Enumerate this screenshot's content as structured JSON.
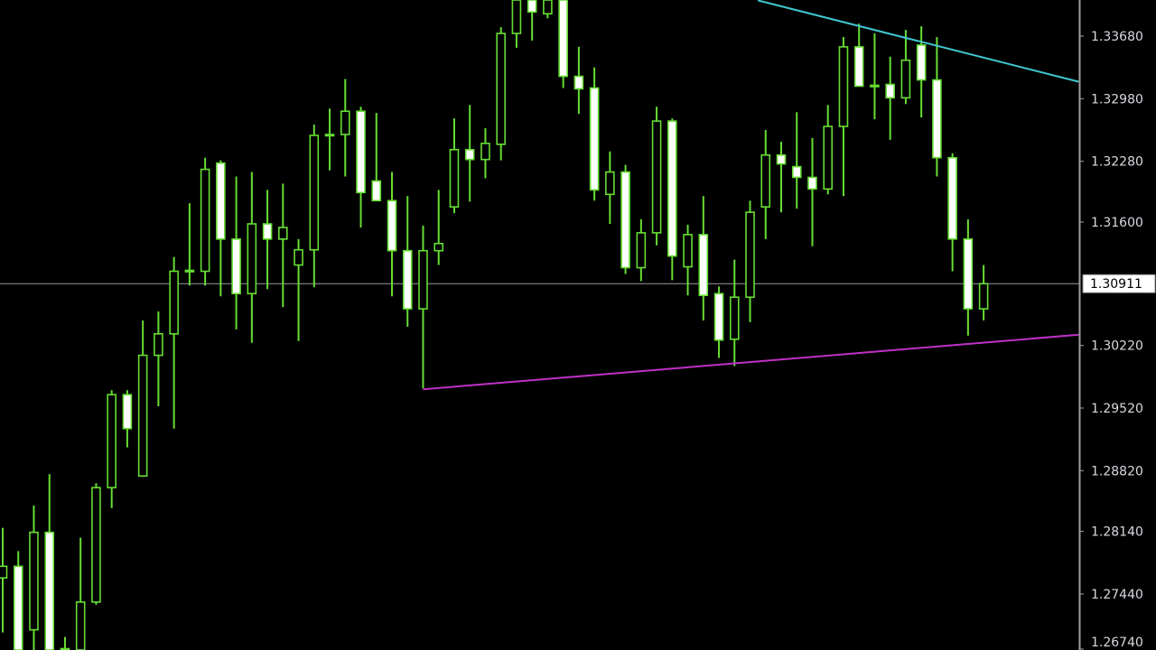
{
  "chart_data": {
    "type": "candlestick",
    "colors": {
      "background": "#000000",
      "candle_outline": "#66dd33",
      "bear_body_fill": "#ffffff",
      "bull_body_fill": "#000000",
      "axis": "#a0a0a0",
      "current_price_line": "#9a9aa8",
      "resistance_line": "#40c8d0",
      "support_line": "#c030c8"
    },
    "y_axis": {
      "position": "right",
      "range": [
        1.26814,
        1.34084
      ],
      "ticks": [
        "1.33680",
        "1.32980",
        "1.32280",
        "1.31600",
        "1.30220",
        "1.29520",
        "1.28820",
        "1.28140",
        "1.27440",
        "1.26740"
      ]
    },
    "current_price": "1.30911",
    "grid": false,
    "candles_ohlc": [
      [
        1.2762,
        1.2818,
        1.2701,
        1.2775
      ],
      [
        1.2775,
        1.2792,
        1.2671,
        1.2681
      ],
      [
        1.2704,
        1.2843,
        1.2676,
        1.2813
      ],
      [
        1.2813,
        1.2878,
        1.2661,
        1.2671
      ],
      [
        1.265,
        1.2696,
        1.264,
        1.267
      ],
      [
        1.2676,
        1.2807,
        1.266,
        1.2735
      ],
      [
        1.2735,
        1.2868,
        1.2732,
        1.2863
      ],
      [
        1.2863,
        1.2972,
        1.284,
        1.2967
      ],
      [
        1.2967,
        1.2972,
        1.2908,
        1.2929
      ],
      [
        1.2876,
        1.305,
        1.2875,
        1.3011
      ],
      [
        1.3011,
        1.306,
        1.2954,
        1.3035
      ],
      [
        1.3035,
        1.3121,
        1.2929,
        1.3105
      ],
      [
        1.3105,
        1.3181,
        1.3089,
        1.3106
      ],
      [
        1.3105,
        1.3232,
        1.3089,
        1.3219
      ],
      [
        1.3226,
        1.3229,
        1.3077,
        1.3141
      ],
      [
        1.3141,
        1.3211,
        1.304,
        1.308
      ],
      [
        1.308,
        1.3216,
        1.3025,
        1.3158
      ],
      [
        1.3158,
        1.3196,
        1.3085,
        1.3141
      ],
      [
        1.3141,
        1.3203,
        1.3065,
        1.3154
      ],
      [
        1.3112,
        1.3141,
        1.3027,
        1.3129
      ],
      [
        1.3129,
        1.3269,
        1.3087,
        1.3257
      ],
      [
        1.3257,
        1.3287,
        1.3218,
        1.3258
      ],
      [
        1.3258,
        1.332,
        1.3211,
        1.3284
      ],
      [
        1.3284,
        1.3289,
        1.3154,
        1.3193
      ],
      [
        1.3206,
        1.3282,
        1.3184,
        1.3184
      ],
      [
        1.3184,
        1.3216,
        1.3077,
        1.3128
      ],
      [
        1.3128,
        1.3189,
        1.3043,
        1.3063
      ],
      [
        1.3063,
        1.3156,
        1.2974,
        1.3128
      ],
      [
        1.3128,
        1.3196,
        1.3112,
        1.3136
      ],
      [
        1.3177,
        1.3276,
        1.317,
        1.3241
      ],
      [
        1.3241,
        1.3291,
        1.3183,
        1.323
      ],
      [
        1.323,
        1.3265,
        1.3209,
        1.3248
      ],
      [
        1.3247,
        1.3378,
        1.3229,
        1.3371
      ],
      [
        1.3371,
        1.3424,
        1.3355,
        1.3413
      ],
      [
        1.3413,
        1.343,
        1.3363,
        1.3395
      ],
      [
        1.3393,
        1.343,
        1.3388,
        1.3415
      ],
      [
        1.3415,
        1.3425,
        1.331,
        1.3323
      ],
      [
        1.3323,
        1.3356,
        1.3281,
        1.3309
      ],
      [
        1.331,
        1.3333,
        1.3184,
        1.3196
      ],
      [
        1.3191,
        1.3239,
        1.3158,
        1.3216
      ],
      [
        1.3216,
        1.3224,
        1.3102,
        1.3109
      ],
      [
        1.3109,
        1.3163,
        1.3094,
        1.3148
      ],
      [
        1.3148,
        1.3289,
        1.3134,
        1.3273
      ],
      [
        1.3273,
        1.3276,
        1.3095,
        1.3122
      ],
      [
        1.311,
        1.3157,
        1.3078,
        1.3146
      ],
      [
        1.3146,
        1.3189,
        1.305,
        1.3078
      ],
      [
        1.308,
        1.3088,
        1.3008,
        1.3028
      ],
      [
        1.3029,
        1.3118,
        1.2999,
        1.3076
      ],
      [
        1.3076,
        1.3184,
        1.3048,
        1.3171
      ],
      [
        1.3177,
        1.3263,
        1.3141,
        1.3235
      ],
      [
        1.3235,
        1.325,
        1.3171,
        1.3225
      ],
      [
        1.3222,
        1.3283,
        1.3175,
        1.321
      ],
      [
        1.321,
        1.3254,
        1.3133,
        1.3197
      ],
      [
        1.3197,
        1.3291,
        1.3191,
        1.3267
      ],
      [
        1.3267,
        1.3367,
        1.3189,
        1.3356
      ],
      [
        1.3356,
        1.3382,
        1.3312,
        1.3312
      ],
      [
        1.3313,
        1.3371,
        1.3275,
        1.3313
      ],
      [
        1.3314,
        1.3345,
        1.3252,
        1.3299
      ],
      [
        1.3299,
        1.3375,
        1.3292,
        1.3341
      ],
      [
        1.3358,
        1.3379,
        1.3277,
        1.3319
      ],
      [
        1.3319,
        1.3367,
        1.3211,
        1.3232
      ],
      [
        1.3232,
        1.3237,
        1.3105,
        1.3141
      ],
      [
        1.3141,
        1.3163,
        1.3033,
        1.3063
      ],
      [
        1.3063,
        1.3112,
        1.305,
        1.30911
      ]
    ],
    "trendlines": [
      {
        "kind": "resistance",
        "from": {
          "bar": 48.5,
          "price": 1.3408
        },
        "to": {
          "bar": 69.1,
          "price": 1.3317
        }
      },
      {
        "kind": "support",
        "from": {
          "bar": 27,
          "price": 1.2973
        },
        "to": {
          "bar": 69.1,
          "price": 1.3034
        }
      }
    ]
  }
}
